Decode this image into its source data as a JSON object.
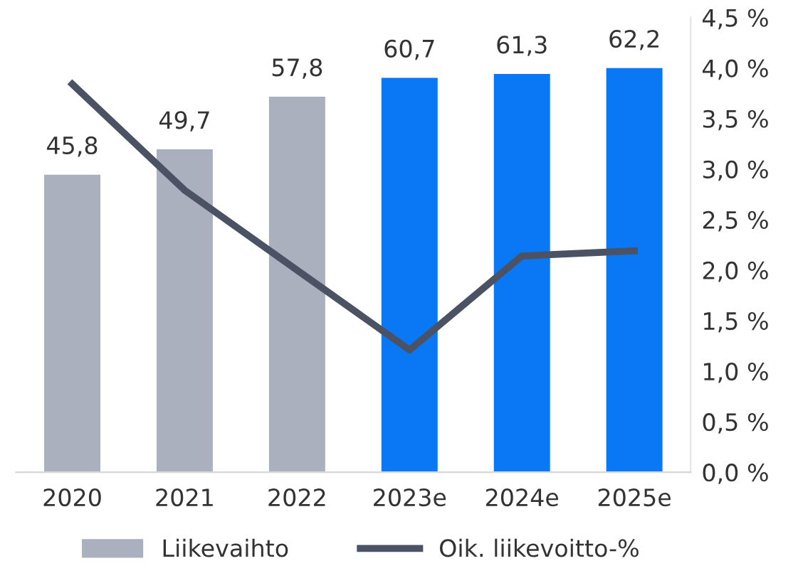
{
  "chart_data": {
    "type": "bar",
    "categories": [
      "2020",
      "2021",
      "2022",
      "2023e",
      "2024e",
      "2025e"
    ],
    "series": [
      {
        "name": "Liikevaihto",
        "colors": [
          "#abb0bf",
          "#abb0bf",
          "#abb0bf",
          "#0a78f5",
          "#0a78f5",
          "#0a78f5"
        ],
        "color": "#abb0bf",
        "values": [
          45.8,
          49.7,
          57.8,
          60.7,
          61.3,
          62.2
        ],
        "value_labels": [
          "45,8",
          "49,7",
          "57,8",
          "60,7",
          "61,3",
          "62,2"
        ]
      },
      {
        "name": "Oik. liikevoitto-%",
        "type": "line",
        "axis": "y2",
        "color": "#4a5263",
        "values": [
          3.84,
          2.79,
          2.0,
          1.21,
          2.14,
          2.19
        ]
      }
    ],
    "ylim": [
      0,
      70
    ],
    "y2lim": [
      0,
      4.5
    ],
    "y2ticks": [
      {
        "value": 0,
        "label": "0,0 %"
      },
      {
        "value": 0.5,
        "label": "0,5 %"
      },
      {
        "value": 1,
        "label": "1,0 %"
      },
      {
        "value": 1.5,
        "label": "1,5 %"
      },
      {
        "value": 2,
        "label": "2,0 %"
      },
      {
        "value": 2.5,
        "label": "2,5 %"
      },
      {
        "value": 3,
        "label": "3,0 %"
      },
      {
        "value": 3.5,
        "label": "3,5 %"
      },
      {
        "value": 4,
        "label": "4,0 %"
      },
      {
        "value": 4.5,
        "label": "4,5 %"
      }
    ],
    "tick_labels": [
      "x",
      "y2"
    ],
    "marker": "none",
    "line_style": "solid",
    "grid": false,
    "legend": "bottom"
  }
}
